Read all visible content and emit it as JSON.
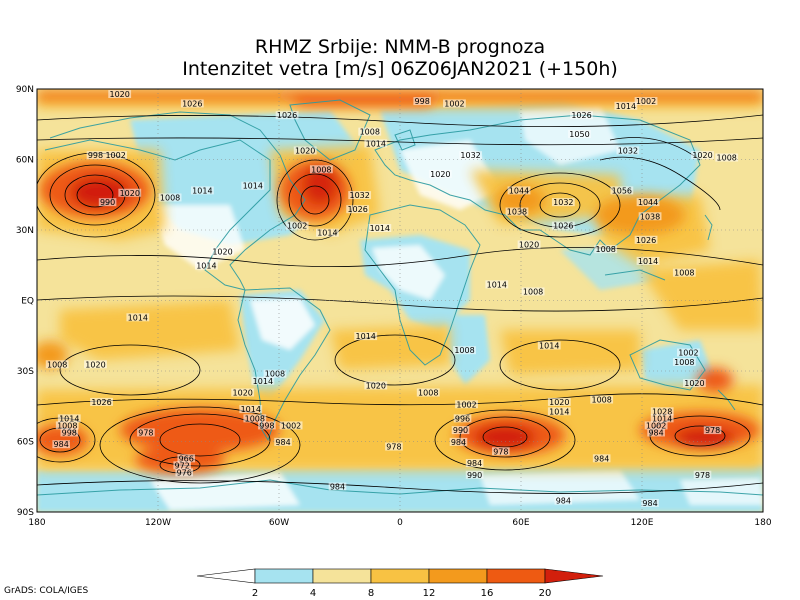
{
  "title": {
    "line1": "RHMZ Srbije: NMM-B prognoza",
    "line2": "Intenzitet vetra [m/s] 06Z06JAN2021 (+150h)"
  },
  "lat_labels": [
    "90N",
    "60N",
    "30N",
    "EQ",
    "30S",
    "60S",
    "90S"
  ],
  "lon_labels": [
    "180",
    "120W",
    "60W",
    "0",
    "60E",
    "120E",
    "180"
  ],
  "colorbar": {
    "ticks": [
      "2",
      "4",
      "8",
      "12",
      "16",
      "20"
    ],
    "colors": [
      "#ffffff",
      "#a6e3f0",
      "#f5e39a",
      "#f8c243",
      "#f39a1d",
      "#ee5a12",
      "#d21f0c"
    ]
  },
  "pressure_labels": [
    {
      "text": "1020",
      "lon": -139,
      "lat": 87
    },
    {
      "text": "1026",
      "lon": -103,
      "lat": 83
    },
    {
      "text": "998",
      "lon": 11,
      "lat": 84
    },
    {
      "text": "1002",
      "lon": 27,
      "lat": 83
    },
    {
      "text": "1014",
      "lon": 112,
      "lat": 82
    },
    {
      "text": "1002",
      "lon": 122,
      "lat": 84
    },
    {
      "text": "1026",
      "lon": -56,
      "lat": 78
    },
    {
      "text": "1026",
      "lon": 90,
      "lat": 78
    },
    {
      "text": "1008",
      "lon": -15,
      "lat": 71
    },
    {
      "text": "1050",
      "lon": 89,
      "lat": 70
    },
    {
      "text": "1014",
      "lon": -12,
      "lat": 66
    },
    {
      "text": "1020",
      "lon": -47,
      "lat": 63
    },
    {
      "text": "1032",
      "lon": 35,
      "lat": 61
    },
    {
      "text": "1032",
      "lon": 113,
      "lat": 63
    },
    {
      "text": "1020",
      "lon": 150,
      "lat": 61
    },
    {
      "text": "998",
      "lon": -151,
      "lat": 61
    },
    {
      "text": "1002",
      "lon": -141,
      "lat": 61
    },
    {
      "text": "1008",
      "lon": -39,
      "lat": 55
    },
    {
      "text": "1020",
      "lon": 20,
      "lat": 53
    },
    {
      "text": "1008",
      "lon": 162,
      "lat": 60
    },
    {
      "text": "1020",
      "lon": -134,
      "lat": 45
    },
    {
      "text": "1014",
      "lon": -98,
      "lat": 46
    },
    {
      "text": "1014",
      "lon": -73,
      "lat": 48
    },
    {
      "text": "1044",
      "lon": 59,
      "lat": 46
    },
    {
      "text": "1056",
      "lon": 110,
      "lat": 46
    },
    {
      "text": "990",
      "lon": -145,
      "lat": 41
    },
    {
      "text": "1032",
      "lon": -20,
      "lat": 44
    },
    {
      "text": "1032",
      "lon": 81,
      "lat": 41
    },
    {
      "text": "1044",
      "lon": 123,
      "lat": 41
    },
    {
      "text": "1026",
      "lon": -21,
      "lat": 38
    },
    {
      "text": "1038",
      "lon": 58,
      "lat": 37
    },
    {
      "text": "1008",
      "lon": -114,
      "lat": 43
    },
    {
      "text": "1038",
      "lon": 124,
      "lat": 35
    },
    {
      "text": "1002",
      "lon": -51,
      "lat": 31
    },
    {
      "text": "1014",
      "lon": -36,
      "lat": 28
    },
    {
      "text": "1014",
      "lon": -10,
      "lat": 30
    },
    {
      "text": "1026",
      "lon": 81,
      "lat": 31
    },
    {
      "text": "1020",
      "lon": -88,
      "lat": 20
    },
    {
      "text": "1020",
      "lon": 64,
      "lat": 23
    },
    {
      "text": "1008",
      "lon": 102,
      "lat": 21
    },
    {
      "text": "1026",
      "lon": 122,
      "lat": 25
    },
    {
      "text": "1014",
      "lon": -96,
      "lat": 14
    },
    {
      "text": "1014",
      "lon": 123,
      "lat": 16
    },
    {
      "text": "1008",
      "lon": 141,
      "lat": 11
    },
    {
      "text": "1014",
      "lon": 48,
      "lat": 6
    },
    {
      "text": "1008",
      "lon": 66,
      "lat": 3
    },
    {
      "text": "1014",
      "lon": -130,
      "lat": -8
    },
    {
      "text": "1014",
      "lon": -17,
      "lat": -16
    },
    {
      "text": "1014",
      "lon": 74,
      "lat": -20
    },
    {
      "text": "1008",
      "lon": 32,
      "lat": -22
    },
    {
      "text": "1002",
      "lon": 143,
      "lat": -23
    },
    {
      "text": "1008",
      "lon": -170,
      "lat": -28
    },
    {
      "text": "1020",
      "lon": -151,
      "lat": -28
    },
    {
      "text": "1008",
      "lon": 141,
      "lat": -27
    },
    {
      "text": "1008",
      "lon": -62,
      "lat": -32
    },
    {
      "text": "1014",
      "lon": -68,
      "lat": -35
    },
    {
      "text": "1020",
      "lon": -12,
      "lat": -37
    },
    {
      "text": "1020",
      "lon": 146,
      "lat": -36
    },
    {
      "text": "1020",
      "lon": -78,
      "lat": -40
    },
    {
      "text": "1008",
      "lon": 14,
      "lat": -40
    },
    {
      "text": "1002",
      "lon": 33,
      "lat": -45
    },
    {
      "text": "1020",
      "lon": 79,
      "lat": -44
    },
    {
      "text": "1008",
      "lon": 100,
      "lat": -43
    },
    {
      "text": "1014",
      "lon": -74,
      "lat": -47
    },
    {
      "text": "1028",
      "lon": 130,
      "lat": -48
    },
    {
      "text": "1026",
      "lon": -148,
      "lat": -44
    },
    {
      "text": "1014",
      "lon": 79,
      "lat": -48
    },
    {
      "text": "1014",
      "lon": -164,
      "lat": -51
    },
    {
      "text": "1008",
      "lon": -72,
      "lat": -51
    },
    {
      "text": "1014",
      "lon": 130,
      "lat": -51
    },
    {
      "text": "1008",
      "lon": -165,
      "lat": -54
    },
    {
      "text": "996",
      "lon": 31,
      "lat": -51
    },
    {
      "text": "998",
      "lon": -66,
      "lat": -54
    },
    {
      "text": "1002",
      "lon": -54,
      "lat": -54
    },
    {
      "text": "1002",
      "lon": 127,
      "lat": -54
    },
    {
      "text": "990",
      "lon": 30,
      "lat": -56
    },
    {
      "text": "978",
      "lon": -126,
      "lat": -57
    },
    {
      "text": "978",
      "lon": 155,
      "lat": -56
    },
    {
      "text": "998",
      "lon": -164,
      "lat": -57
    },
    {
      "text": "984",
      "lon": -58,
      "lat": -61
    },
    {
      "text": "984",
      "lon": 127,
      "lat": -57
    },
    {
      "text": "984",
      "lon": -168,
      "lat": -62
    },
    {
      "text": "984",
      "lon": 29,
      "lat": -61
    },
    {
      "text": "978",
      "lon": -3,
      "lat": -63
    },
    {
      "text": "978",
      "lon": 50,
      "lat": -65
    },
    {
      "text": "984",
      "lon": 100,
      "lat": -68
    },
    {
      "text": "984",
      "lon": 37,
      "lat": -70
    },
    {
      "text": "966",
      "lon": -106,
      "lat": -68
    },
    {
      "text": "972",
      "lon": -108,
      "lat": -71
    },
    {
      "text": "976",
      "lon": -107,
      "lat": -74
    },
    {
      "text": "990",
      "lon": 37,
      "lat": -75
    },
    {
      "text": "978",
      "lon": 150,
      "lat": -75
    },
    {
      "text": "984",
      "lon": -31,
      "lat": -80
    },
    {
      "text": "984",
      "lon": 81,
      "lat": -86
    },
    {
      "text": "984",
      "lon": 124,
      "lat": -87
    }
  ],
  "credit": "GrADS: COLA/IGES"
}
